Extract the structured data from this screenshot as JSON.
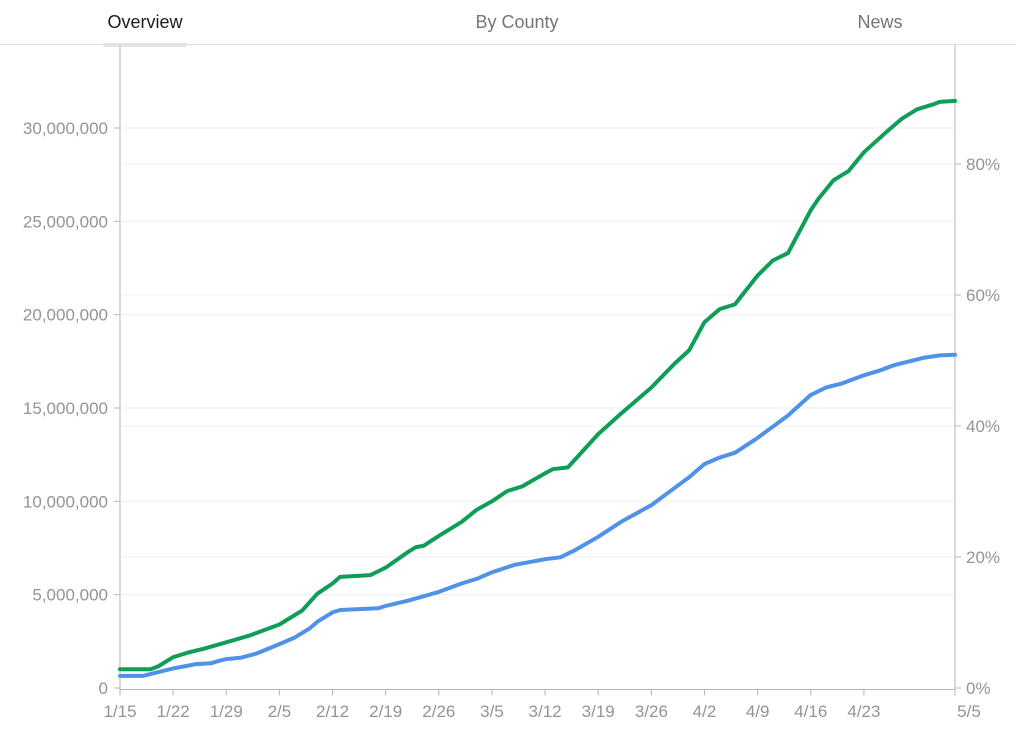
{
  "header": {
    "tabs": [
      {
        "label": "Overview",
        "active": true
      },
      {
        "label": "By County",
        "active": false
      },
      {
        "label": "News",
        "active": false
      }
    ]
  },
  "chart_data": {
    "type": "line",
    "title": "",
    "legend": "none",
    "grid": true,
    "x_domain_days": 110,
    "x_ticks": [
      {
        "day": 0,
        "label": "1/15"
      },
      {
        "day": 7,
        "label": "1/22"
      },
      {
        "day": 14,
        "label": "1/29"
      },
      {
        "day": 21,
        "label": "2/5"
      },
      {
        "day": 28,
        "label": "2/12"
      },
      {
        "day": 35,
        "label": "2/19"
      },
      {
        "day": 42,
        "label": "2/26"
      },
      {
        "day": 49,
        "label": "3/5"
      },
      {
        "day": 56,
        "label": "3/12"
      },
      {
        "day": 63,
        "label": "3/19"
      },
      {
        "day": 70,
        "label": "3/26"
      },
      {
        "day": 77,
        "label": "4/2"
      },
      {
        "day": 84,
        "label": "4/9"
      },
      {
        "day": 91,
        "label": "4/16"
      },
      {
        "day": 98,
        "label": "4/23"
      },
      {
        "day": 110,
        "label": "5/5"
      }
    ],
    "y_left_axis": {
      "unit": "count",
      "max_value_millions": 34.45,
      "ticks": [
        {
          "value_millions": 0,
          "label": "0"
        },
        {
          "value_millions": 5,
          "label": "5,000,000"
        },
        {
          "value_millions": 10,
          "label": "10,000,000"
        },
        {
          "value_millions": 15,
          "label": "15,000,000"
        },
        {
          "value_millions": 20,
          "label": "20,000,000"
        },
        {
          "value_millions": 25,
          "label": "25,000,000"
        },
        {
          "value_millions": 30,
          "label": "30,000,000"
        }
      ]
    },
    "y_right_axis": {
      "unit": "percent",
      "max_percent": 98.2,
      "millions_per_percent": 0.3509,
      "ticks": [
        {
          "percent": 0,
          "label": "0%"
        },
        {
          "percent": 20,
          "label": "20%"
        },
        {
          "percent": 40,
          "label": "40%"
        },
        {
          "percent": 60,
          "label": "60%"
        },
        {
          "percent": 80,
          "label": "80%"
        }
      ]
    },
    "series": [
      {
        "id": "green-series",
        "color": "#0f9d58",
        "unit": "millions",
        "points": [
          [
            0,
            1.0
          ],
          [
            4,
            1.0
          ],
          [
            5,
            1.15
          ],
          [
            7,
            1.65
          ],
          [
            9,
            1.9
          ],
          [
            11,
            2.1
          ],
          [
            14,
            2.45
          ],
          [
            17,
            2.8
          ],
          [
            21,
            3.4
          ],
          [
            24,
            4.15
          ],
          [
            26,
            5.05
          ],
          [
            28,
            5.6
          ],
          [
            29,
            5.95
          ],
          [
            33,
            6.05
          ],
          [
            35,
            6.45
          ],
          [
            38,
            7.3
          ],
          [
            39,
            7.55
          ],
          [
            40,
            7.62
          ],
          [
            42,
            8.15
          ],
          [
            45,
            8.9
          ],
          [
            47,
            9.55
          ],
          [
            49,
            10.0
          ],
          [
            51,
            10.55
          ],
          [
            53,
            10.8
          ],
          [
            56,
            11.5
          ],
          [
            57,
            11.72
          ],
          [
            59,
            11.82
          ],
          [
            63,
            13.6
          ],
          [
            66,
            14.7
          ],
          [
            70,
            16.1
          ],
          [
            73,
            17.35
          ],
          [
            75,
            18.1
          ],
          [
            77,
            19.6
          ],
          [
            79,
            20.3
          ],
          [
            81,
            20.55
          ],
          [
            84,
            22.1
          ],
          [
            86,
            22.9
          ],
          [
            88,
            23.3
          ],
          [
            91,
            25.6
          ],
          [
            92,
            26.2
          ],
          [
            94,
            27.2
          ],
          [
            96,
            27.7
          ],
          [
            98,
            28.7
          ],
          [
            101,
            29.8
          ],
          [
            103,
            30.5
          ],
          [
            105,
            31.0
          ],
          [
            107,
            31.25
          ],
          [
            108,
            31.4
          ],
          [
            110,
            31.45
          ]
        ]
      },
      {
        "id": "blue-series",
        "color": "#4f92e8",
        "unit": "millions",
        "points": [
          [
            0,
            0.65
          ],
          [
            3,
            0.65
          ],
          [
            6,
            0.95
          ],
          [
            7,
            1.05
          ],
          [
            9,
            1.2
          ],
          [
            10,
            1.28
          ],
          [
            12,
            1.33
          ],
          [
            13,
            1.45
          ],
          [
            14,
            1.55
          ],
          [
            16,
            1.63
          ],
          [
            18,
            1.85
          ],
          [
            21,
            2.35
          ],
          [
            23,
            2.7
          ],
          [
            25,
            3.2
          ],
          [
            26,
            3.55
          ],
          [
            28,
            4.05
          ],
          [
            29,
            4.18
          ],
          [
            34,
            4.27
          ],
          [
            35,
            4.4
          ],
          [
            38,
            4.68
          ],
          [
            42,
            5.15
          ],
          [
            45,
            5.6
          ],
          [
            47,
            5.85
          ],
          [
            49,
            6.2
          ],
          [
            52,
            6.6
          ],
          [
            56,
            6.9
          ],
          [
            58,
            7.0
          ],
          [
            60,
            7.4
          ],
          [
            63,
            8.1
          ],
          [
            66,
            8.9
          ],
          [
            70,
            9.8
          ],
          [
            73,
            10.7
          ],
          [
            75,
            11.3
          ],
          [
            77,
            12.0
          ],
          [
            79,
            12.35
          ],
          [
            81,
            12.6
          ],
          [
            84,
            13.4
          ],
          [
            86,
            14.0
          ],
          [
            88,
            14.6
          ],
          [
            91,
            15.7
          ],
          [
            93,
            16.1
          ],
          [
            95,
            16.3
          ],
          [
            98,
            16.75
          ],
          [
            100,
            17.0
          ],
          [
            102,
            17.3
          ],
          [
            104,
            17.5
          ],
          [
            106,
            17.7
          ],
          [
            108,
            17.82
          ],
          [
            110,
            17.85
          ]
        ]
      }
    ]
  }
}
